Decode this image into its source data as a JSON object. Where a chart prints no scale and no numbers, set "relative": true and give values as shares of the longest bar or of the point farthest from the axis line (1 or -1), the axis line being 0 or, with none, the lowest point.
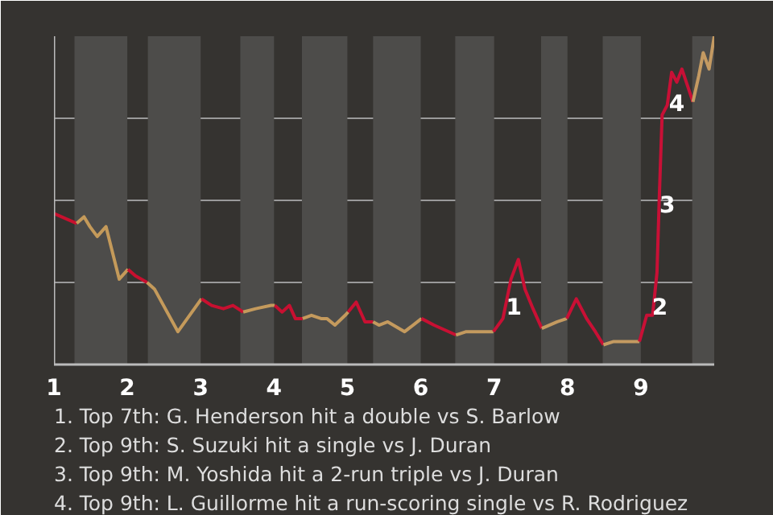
{
  "chart_data": {
    "type": "line",
    "relative": true,
    "grid": "y",
    "marker": "none",
    "line_style": "solid",
    "xlim": [
      1,
      10
    ],
    "xticks": [
      1,
      2,
      3,
      4,
      5,
      6,
      7,
      8,
      9
    ],
    "series": [
      {
        "color": "#c8102e",
        "x": [
          1.0,
          1.31
        ],
        "values": [
          0.46,
          0.43
        ]
      },
      {
        "color": "#c49a5a",
        "x": [
          1.31,
          1.41,
          1.49,
          1.59,
          1.71,
          1.89,
          2.01
        ],
        "values": [
          0.43,
          0.45,
          0.42,
          0.39,
          0.42,
          0.26,
          0.29
        ]
      },
      {
        "color": "#c8102f",
        "x": [
          2.01,
          2.11,
          2.27
        ],
        "values": [
          0.29,
          0.27,
          0.25
        ]
      },
      {
        "color": "#c49a5b",
        "x": [
          2.27,
          2.37,
          2.69,
          3.01
        ],
        "values": [
          0.25,
          0.23,
          0.1,
          0.2
        ]
      },
      {
        "color": "#c81030",
        "x": [
          3.01,
          3.15,
          3.31,
          3.44,
          3.58
        ],
        "values": [
          0.2,
          0.18,
          0.17,
          0.18,
          0.16
        ]
      },
      {
        "color": "#c49a5c",
        "x": [
          3.58,
          3.75,
          3.96,
          4.01
        ],
        "values": [
          0.16,
          0.17,
          0.18,
          0.18
        ]
      },
      {
        "color": "#c81031",
        "x": [
          4.01,
          4.11,
          4.21,
          4.29,
          4.39
        ],
        "values": [
          0.18,
          0.16,
          0.18,
          0.14,
          0.14
        ]
      },
      {
        "color": "#c49a5d",
        "x": [
          4.39,
          4.51,
          4.64,
          4.72,
          4.83,
          4.97,
          5.01
        ],
        "values": [
          0.14,
          0.15,
          0.14,
          0.14,
          0.12,
          0.15,
          0.16
        ]
      },
      {
        "color": "#c81032",
        "x": [
          5.01,
          5.12,
          5.24,
          5.35
        ],
        "values": [
          0.16,
          0.19,
          0.13,
          0.13
        ]
      },
      {
        "color": "#c49a5e",
        "x": [
          5.35,
          5.43,
          5.55,
          5.78,
          6.01
        ],
        "values": [
          0.13,
          0.12,
          0.13,
          0.1,
          0.14
        ]
      },
      {
        "color": "#c81033",
        "x": [
          6.01,
          6.18,
          6.48
        ],
        "values": [
          0.14,
          0.12,
          0.09
        ]
      },
      {
        "color": "#c49a5f",
        "x": [
          6.48,
          6.62,
          6.99
        ],
        "values": [
          0.09,
          0.1,
          0.1
        ]
      },
      {
        "color": "#c81034",
        "x": [
          6.99,
          7.12,
          7.23,
          7.33,
          7.42,
          7.53,
          7.65
        ],
        "values": [
          0.1,
          0.14,
          0.26,
          0.32,
          0.23,
          0.17,
          0.11
        ]
      },
      {
        "color": "#c49a60",
        "x": [
          7.65,
          7.86,
          7.99
        ],
        "values": [
          0.11,
          0.13,
          0.14
        ]
      },
      {
        "color": "#c81035",
        "x": [
          7.99,
          8.12,
          8.26,
          8.38,
          8.49
        ],
        "values": [
          0.14,
          0.2,
          0.14,
          0.1,
          0.06
        ]
      },
      {
        "color": "#c49a61",
        "x": [
          8.49,
          8.63,
          8.8,
          8.98
        ],
        "values": [
          0.06,
          0.07,
          0.07,
          0.07
        ]
      },
      {
        "color": "#c81036",
        "x": [
          8.98,
          9.08,
          9.16,
          9.22,
          9.25,
          9.29,
          9.36,
          9.42,
          9.49,
          9.56,
          9.71
        ],
        "values": [
          0.07,
          0.15,
          0.15,
          0.28,
          0.5,
          0.76,
          0.79,
          0.89,
          0.86,
          0.9,
          0.8
        ]
      },
      {
        "color": "#c49a62",
        "x": [
          9.71,
          9.79,
          9.85,
          9.93,
          10.0
        ],
        "values": [
          0.8,
          0.88,
          0.95,
          0.9,
          1.0
        ]
      }
    ],
    "bands": [
      {
        "axis": "x",
        "from": 1.28,
        "to": 2,
        "color": "#4d4c4a"
      },
      {
        "axis": "x",
        "from": 2.28,
        "to": 3,
        "color": "#4d4c4a"
      },
      {
        "axis": "x",
        "from": 3.54,
        "to": 4,
        "color": "#4d4c4a"
      },
      {
        "axis": "x",
        "from": 4.38,
        "to": 5,
        "color": "#4d4c4a"
      },
      {
        "axis": "x",
        "from": 5.35,
        "to": 6,
        "color": "#4d4c4a"
      },
      {
        "axis": "x",
        "from": 6.47,
        "to": 7,
        "color": "#4d4c4a"
      },
      {
        "axis": "x",
        "from": 7.64,
        "to": 8,
        "color": "#4d4c4a"
      },
      {
        "axis": "x",
        "from": 8.48,
        "to": 9,
        "color": "#4d4c4a"
      },
      {
        "axis": "x",
        "from": 9.7,
        "to": 10,
        "color": "#4d4c4a"
      }
    ],
    "annotations": [
      {
        "text": "1",
        "x": 7.27,
        "y": 0.18
      },
      {
        "text": "2",
        "x": 9.26,
        "y": 0.18
      },
      {
        "text": "3",
        "x": 9.36,
        "y": 0.49
      },
      {
        "text": "4",
        "x": 9.49,
        "y": 0.8
      },
      "1. Top 7th: G. Henderson hit a double vs S. Barlow",
      "2. Top 9th: S. Suzuki hit a single vs J. Duran",
      "3. Top 9th: M. Yoshida hit a 2-run triple vs J. Duran",
      "4. Top 9th: L. Guillorme hit a run-scoring single vs R. Rodriguez"
    ]
  }
}
